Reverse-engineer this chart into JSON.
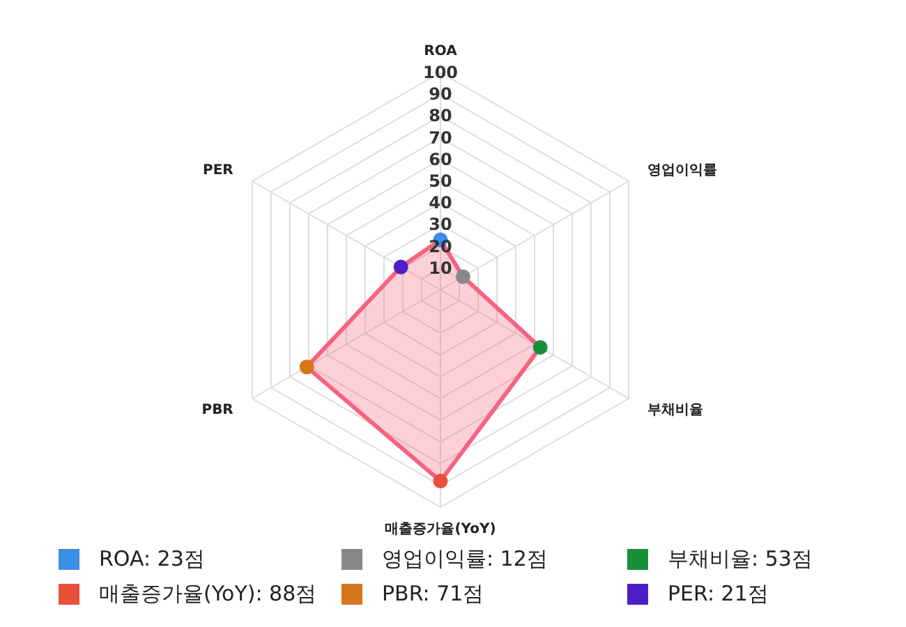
{
  "chart_data": {
    "type": "radar",
    "categories": [
      "ROA",
      "영업이익률",
      "부채비율",
      "매출증가율(YoY)",
      "PBR",
      "PER"
    ],
    "series": [
      {
        "color": "#f7637f",
        "values": [
          23,
          12,
          53,
          88,
          71,
          21
        ],
        "colors": [
          "#3a8ee6",
          "#888888",
          "#1a8f3a",
          "#e8503a",
          "#d4761a",
          "#4b1fc4"
        ]
      }
    ],
    "annotations": [
      "ROA: 23점",
      "영업이익률: 12점",
      "부채비율: 53점",
      "매출증가율(YoY): 88점",
      "PBR: 71점",
      "PER: 21점"
    ],
    "ylim": [
      0,
      100
    ],
    "yticks": [
      10,
      20,
      30,
      40,
      50,
      60,
      70,
      80,
      90,
      100
    ],
    "grid": true,
    "marker": "circle"
  }
}
